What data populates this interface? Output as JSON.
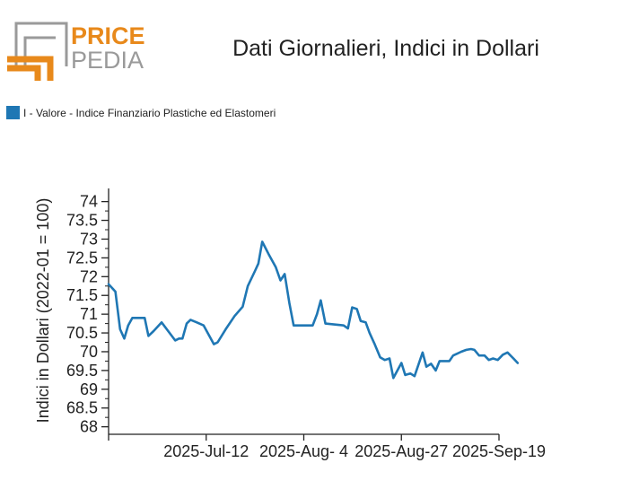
{
  "logo": {
    "top": "PRICE",
    "bottom": "PEDIA",
    "colors": {
      "orange": "#e8891b",
      "gray": "#9a9a9a"
    }
  },
  "title": "Dati Giornalieri, Indici in Dollari",
  "legend": {
    "label": "I - Valore - Indice Finanziario Plastiche ed Elastomeri",
    "color": "#1f77b4"
  },
  "chart_data": {
    "type": "line",
    "ylabel": "Indici in Dollari (2022-01 = 100)",
    "ylim": [
      67.8,
      74.35
    ],
    "y_ticks": [
      "68",
      "68.5",
      "69",
      "69.5",
      "70",
      "70.5",
      "71",
      "71.5",
      "72",
      "72.5",
      "73",
      "73.5",
      "74"
    ],
    "x_ticks": [
      "2025-Jul-12",
      "2025-Aug- 4",
      "2025-Aug-27",
      "2025-Sep-19"
    ],
    "x_range_days": [
      -23,
      69
    ],
    "series": [
      {
        "color": "#1f77b4",
        "points": [
          [
            -23,
            71.8
          ],
          [
            -21.4,
            71.6
          ],
          [
            -20.3,
            70.6
          ],
          [
            -19.3,
            70.35
          ],
          [
            -18.4,
            70.7
          ],
          [
            -17.4,
            70.9
          ],
          [
            -15.8,
            70.9
          ],
          [
            -14.5,
            70.9
          ],
          [
            -13.6,
            70.42
          ],
          [
            -12.4,
            70.55
          ],
          [
            -10.5,
            70.78
          ],
          [
            -8.3,
            70.45
          ],
          [
            -7.3,
            70.3
          ],
          [
            -6.4,
            70.35
          ],
          [
            -5.6,
            70.35
          ],
          [
            -4.6,
            70.75
          ],
          [
            -3.7,
            70.85
          ],
          [
            -2.2,
            70.78
          ],
          [
            -0.6,
            70.7
          ],
          [
            1.8,
            70.2
          ],
          [
            2.7,
            70.25
          ],
          [
            4.6,
            70.6
          ],
          [
            6.7,
            70.95
          ],
          [
            8.6,
            71.2
          ],
          [
            9.8,
            71.75
          ],
          [
            11.5,
            72.15
          ],
          [
            12.3,
            72.35
          ],
          [
            13.2,
            72.93
          ],
          [
            14.7,
            72.6
          ],
          [
            16.4,
            72.25
          ],
          [
            17.5,
            71.9
          ],
          [
            18.5,
            72.07
          ],
          [
            19.6,
            71.3
          ],
          [
            20.6,
            70.7
          ],
          [
            23.2,
            70.7
          ],
          [
            25.1,
            70.7
          ],
          [
            26.1,
            71.0
          ],
          [
            27,
            71.37
          ],
          [
            28.1,
            70.75
          ],
          [
            30.9,
            70.72
          ],
          [
            32.4,
            70.7
          ],
          [
            33.4,
            70.62
          ],
          [
            34.4,
            71.18
          ],
          [
            35.5,
            71.14
          ],
          [
            36.4,
            70.82
          ],
          [
            37.6,
            70.78
          ],
          [
            38.5,
            70.5
          ],
          [
            39.7,
            70.2
          ],
          [
            41,
            69.85
          ],
          [
            42.1,
            69.78
          ],
          [
            43.2,
            69.82
          ],
          [
            44.1,
            69.3
          ],
          [
            46,
            69.7
          ],
          [
            46.9,
            69.38
          ],
          [
            48.1,
            69.42
          ],
          [
            49.1,
            69.35
          ],
          [
            51,
            69.98
          ],
          [
            51.9,
            69.6
          ],
          [
            53,
            69.68
          ],
          [
            54.1,
            69.5
          ],
          [
            55,
            69.75
          ],
          [
            57.3,
            69.75
          ],
          [
            58.2,
            69.9
          ],
          [
            60.1,
            70.0
          ],
          [
            61.3,
            70.05
          ],
          [
            62.4,
            70.07
          ],
          [
            63.2,
            70.05
          ],
          [
            64.3,
            69.9
          ],
          [
            65.6,
            69.9
          ],
          [
            66.6,
            69.78
          ],
          [
            67.6,
            69.82
          ],
          [
            68.7,
            69.78
          ],
          [
            69.9,
            69.92
          ],
          [
            71,
            69.98
          ],
          [
            72.4,
            69.82
          ],
          [
            73.4,
            69.7
          ]
        ]
      }
    ]
  }
}
